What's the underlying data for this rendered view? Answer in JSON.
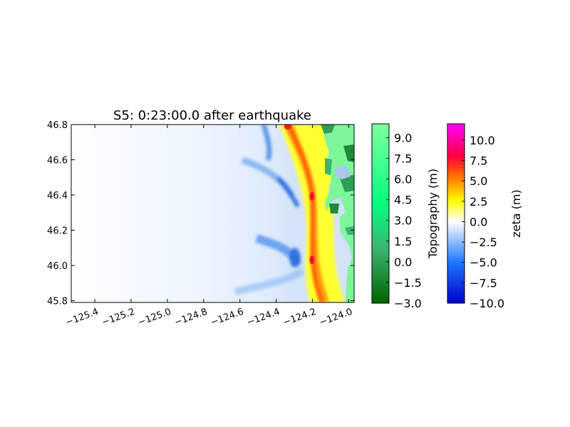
{
  "chart_data": {
    "type": "heatmap",
    "title": "S5: 0:23:00.0 after earthquake",
    "xlabel": "",
    "ylabel": "",
    "xlim": [
      -125.53,
      -123.97
    ],
    "ylim": [
      45.79,
      46.8
    ],
    "x_ticks": [
      "−125.4",
      "−125.2",
      "−125.0",
      "−124.8",
      "−124.6",
      "−124.4",
      "−124.2",
      "−124.0"
    ],
    "x_tick_values": [
      -125.4,
      -125.2,
      -125.0,
      -124.8,
      -124.6,
      -124.4,
      -124.2,
      -124.0
    ],
    "y_ticks": [
      "45.8",
      "46.0",
      "46.2",
      "46.4",
      "46.6",
      "46.8"
    ],
    "y_tick_values": [
      45.8,
      46.0,
      46.2,
      46.4,
      46.6,
      46.8
    ],
    "grid": false,
    "features": {
      "wave_crest_lon_at_lat": [
        [
          46.8,
          -124.29
        ],
        [
          46.6,
          -124.22
        ],
        [
          46.4,
          -124.18
        ],
        [
          46.2,
          -124.19
        ],
        [
          46.0,
          -124.16
        ],
        [
          45.8,
          -124.15
        ]
      ],
      "trough_lon_at_lat": [
        [
          46.8,
          -124.41
        ],
        [
          46.6,
          -124.38
        ],
        [
          46.4,
          -124.33
        ],
        [
          46.2,
          -124.34
        ],
        [
          46.0,
          -124.33
        ],
        [
          45.8,
          -124.3
        ]
      ],
      "coastline_lon_at_lat": [
        [
          46.8,
          -124.1
        ],
        [
          46.6,
          -124.09
        ],
        [
          46.4,
          -124.12
        ],
        [
          46.2,
          -124.07
        ],
        [
          46.0,
          -124.05
        ],
        [
          45.8,
          -124.04
        ]
      ],
      "max_zeta_points": [
        [
          -124.13,
          46.4,
          8.5
        ],
        [
          -124.13,
          46.03,
          8.5
        ],
        [
          -124.29,
          46.79,
          8.0
        ]
      ]
    },
    "colorbars": [
      {
        "label": "Topography (m)",
        "ticks": [
          "−3.0",
          "−1.5",
          "0.0",
          "1.5",
          "3.0",
          "4.5",
          "6.0",
          "7.5",
          "9.0"
        ],
        "range": [
          -3.0,
          10.0
        ],
        "colors": [
          "#006400",
          "#3cb371",
          "#00ff7f",
          "#7fff9f"
        ]
      },
      {
        "label": "zeta (m)",
        "ticks": [
          "−10.0",
          "−7.5",
          "−5.0",
          "−2.5",
          "0.0",
          "2.5",
          "5.0",
          "7.5",
          "10.0"
        ],
        "range": [
          -10.0,
          12.0
        ],
        "colors": [
          "#0000c8",
          "#1e78ff",
          "#ffffff",
          "#ffff00",
          "#ff6400",
          "#ff0040",
          "#ff00ff"
        ]
      }
    ]
  }
}
